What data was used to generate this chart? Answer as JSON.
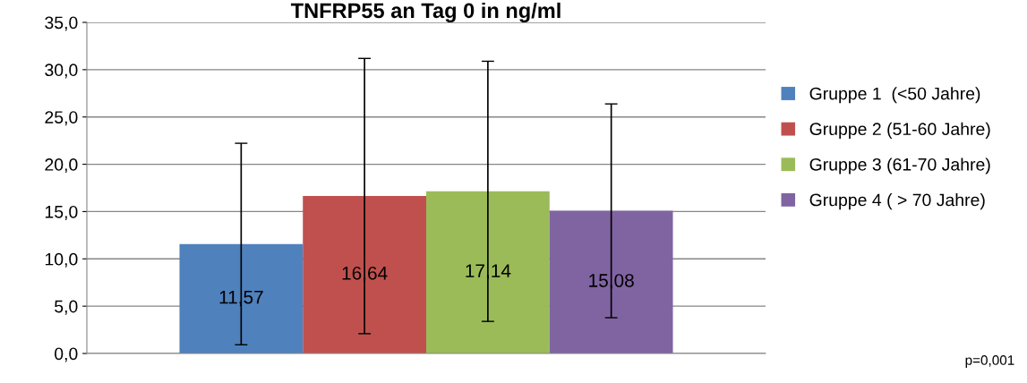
{
  "chart_data": {
    "type": "bar",
    "title": "TNFRP55 an Tag 0 in ng/ml",
    "categories": [
      null
    ],
    "series": [
      {
        "name": "Gruppe 1  (<50 Jahre)",
        "color": "#4f81bd",
        "values": [
          11.57
        ],
        "errors": [
          10.65
        ],
        "value_labels": [
          "11,57"
        ]
      },
      {
        "name": "Gruppe 2 (51-60 Jahre)",
        "color": "#c0504d",
        "values": [
          16.64
        ],
        "errors": [
          14.55
        ],
        "value_labels": [
          "16,64"
        ]
      },
      {
        "name": "Gruppe 3 (61-70 Jahre)",
        "color": "#9bbb59",
        "values": [
          17.14
        ],
        "errors": [
          13.75
        ],
        "value_labels": [
          "17,14"
        ]
      },
      {
        "name": "Gruppe 4 ( > 70 Jahre)",
        "color": "#8064a2",
        "values": [
          15.08
        ],
        "errors": [
          11.3
        ],
        "value_labels": [
          "15,08"
        ]
      }
    ],
    "ylim": [
      0,
      35
    ],
    "yticks": [
      {
        "value": 0,
        "label": "0,0"
      },
      {
        "value": 5,
        "label": "5,0"
      },
      {
        "value": 10,
        "label": "10,0"
      },
      {
        "value": 15,
        "label": "15,0"
      },
      {
        "value": 20,
        "label": "20,0"
      },
      {
        "value": 25,
        "label": "25,0"
      },
      {
        "value": 30,
        "label": "30,0"
      },
      {
        "value": 35,
        "label": "35,0"
      }
    ],
    "grid": "y",
    "legend": "right",
    "annotations": [
      "p=0,001"
    ]
  }
}
